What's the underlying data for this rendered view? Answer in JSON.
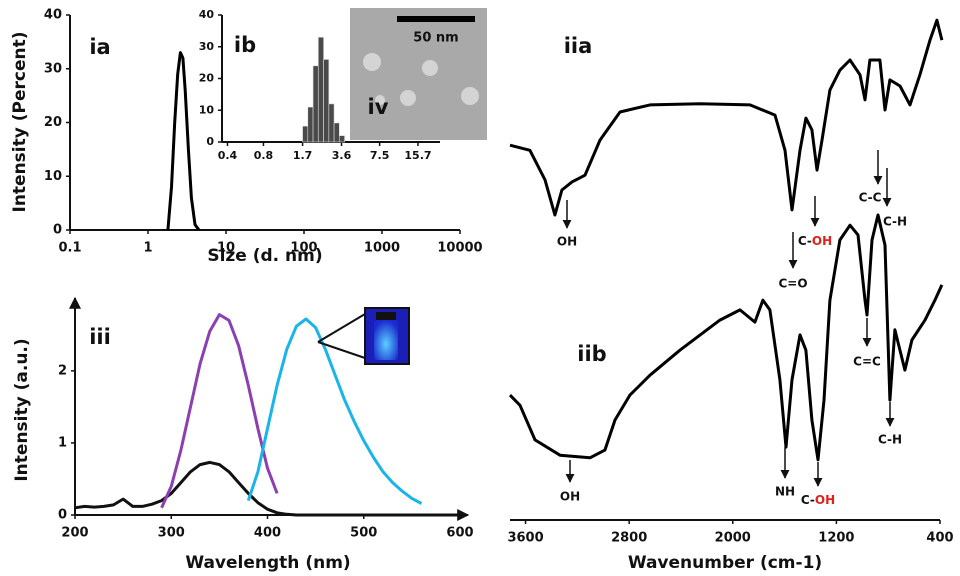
{
  "chart_data": [
    {
      "type": "line",
      "panel_label": "ia",
      "xlabel": "Size (d. nm)",
      "ylabel": "Intensity (Percent)",
      "xscale": "log",
      "xlim": [
        0.1,
        10000
      ],
      "xticks": [
        0.1,
        1,
        10,
        100,
        1000,
        10000
      ],
      "ylim": [
        0,
        40
      ],
      "yticks": [
        0,
        10,
        20,
        30,
        40
      ],
      "color": "#000000",
      "x": [
        1.8,
        2.0,
        2.2,
        2.4,
        2.6,
        2.8,
        3.0,
        3.3,
        3.6,
        4.0,
        4.5
      ],
      "values": [
        0,
        8,
        20,
        29,
        33,
        32,
        26,
        15,
        6,
        1,
        0
      ]
    },
    {
      "type": "histogram",
      "panel_label": "ib",
      "xscale": "log",
      "xlim": [
        0.36,
        24
      ],
      "xticks": [
        0.4,
        0.8,
        1.7,
        3.6,
        7.5,
        15.7
      ],
      "ylim": [
        0,
        40
      ],
      "yticks": [
        0,
        10,
        20,
        30,
        40
      ],
      "color": "#4a4a4a",
      "bins": [
        1.7,
        1.88,
        2.08,
        2.3,
        2.55,
        2.82,
        3.12,
        3.45,
        3.82
      ],
      "values": [
        5,
        11,
        24,
        33,
        26,
        12,
        6,
        2
      ]
    },
    {
      "type": "image",
      "panel_label": "iv",
      "scale_bar": "50 nm"
    },
    {
      "type": "line",
      "panel_label": "iii",
      "xlabel": "Wavelength (nm)",
      "ylabel": "Intensity (a.u.)",
      "xlim": [
        200,
        600
      ],
      "xticks": [
        200,
        300,
        400,
        500,
        600
      ],
      "ylim": [
        0,
        2.9
      ],
      "yticks": [
        0,
        1,
        2
      ],
      "x": [
        200,
        210,
        220,
        230,
        240,
        250,
        260,
        270,
        280,
        290,
        300,
        310,
        320,
        330,
        340,
        350,
        360,
        370,
        380,
        390,
        400,
        410,
        420,
        430,
        440,
        450,
        460,
        470,
        480,
        490,
        500,
        510,
        520,
        530,
        540,
        550,
        560,
        570,
        580,
        590,
        600
      ],
      "series": [
        {
          "color": "#111111",
          "values": [
            0.1,
            0.12,
            0.11,
            0.12,
            0.14,
            0.22,
            0.12,
            0.12,
            0.15,
            0.2,
            0.3,
            0.45,
            0.6,
            0.7,
            0.73,
            0.7,
            0.6,
            0.45,
            0.3,
            0.17,
            0.08,
            0.03,
            0.01,
            0,
            0,
            0,
            0,
            0,
            0,
            0,
            0,
            0,
            0,
            0,
            0,
            0,
            0,
            0,
            0,
            0,
            0
          ]
        },
        {
          "color": "#8b3fb0",
          "values": [
            null,
            null,
            null,
            null,
            null,
            null,
            null,
            null,
            null,
            0.1,
            0.4,
            0.9,
            1.5,
            2.1,
            2.55,
            2.78,
            2.7,
            2.35,
            1.8,
            1.2,
            0.65,
            0.3,
            null,
            null,
            null,
            null,
            null,
            null,
            null,
            null,
            null,
            null,
            null,
            null,
            null,
            null,
            null,
            null,
            null,
            null,
            null
          ]
        },
        {
          "color": "#19b5ea",
          "values": [
            null,
            null,
            null,
            null,
            null,
            null,
            null,
            null,
            null,
            null,
            null,
            null,
            null,
            null,
            null,
            null,
            null,
            null,
            0.2,
            0.6,
            1.2,
            1.8,
            2.3,
            2.62,
            2.72,
            2.6,
            2.3,
            1.95,
            1.6,
            1.3,
            1.03,
            0.8,
            0.6,
            0.45,
            0.33,
            0.23,
            0.16,
            null,
            null,
            null,
            null
          ]
        }
      ]
    },
    {
      "type": "line",
      "xlabel": "Wavenumber (cm-1)",
      "xlim": [
        3720,
        400
      ],
      "xticks": [
        3600,
        2800,
        2000,
        1200,
        400
      ],
      "ylim": [
        0,
        100
      ],
      "series": [
        {
          "name": "iia",
          "color": "#000000",
          "x": [
            3720,
            3566,
            3450,
            3373,
            3319,
            3241,
            3141,
            3025,
            2871,
            2639,
            2253,
            1867,
            1674,
            1597,
            1543,
            1481,
            1435,
            1389,
            1350,
            1311,
            1250,
            1173,
            1095,
            1018,
            979,
            941,
            864,
            825,
            787,
            709,
            632,
            555,
            477,
            424,
            385
          ],
          "values": [
            73.5,
            72.5,
            66.7,
            59.8,
            64.7,
            66.3,
            67.6,
            74.5,
            80,
            81.4,
            81.6,
            81.4,
            79.4,
            72.5,
            60.8,
            72.5,
            78.8,
            76.5,
            68.6,
            74.5,
            84.3,
            88.2,
            90.2,
            87.3,
            82.4,
            90.2,
            90.2,
            80.4,
            86.3,
            85.1,
            81.4,
            87.3,
            94.1,
            98,
            94.1
          ],
          "annotations": [
            {
              "text": "OH",
              "color": "#e0201b"
            },
            {
              "text": "C=O",
              "color": "#111111"
            },
            {
              "text": [
                "C-",
                "OH"
              ],
              "color": [
                "#111111",
                "#e0201b"
              ]
            },
            {
              "text": "C-C",
              "color": "#111111"
            },
            {
              "text": "C-H",
              "color": "#111111"
            }
          ]
        },
        {
          "name": "iib",
          "color": "#000000",
          "x": [
            3720,
            3643,
            3527,
            3334,
            3102,
            2987,
            2909,
            2794,
            2639,
            2408,
            2099,
            1944,
            1829,
            1767,
            1713,
            1636,
            1589,
            1543,
            1481,
            1435,
            1389,
            1342,
            1296,
            1250,
            1173,
            1095,
            1033,
            979,
            964,
            925,
            879,
            825,
            787,
            748,
            671,
            617,
            516,
            439,
            385
          ],
          "values": [
            24.5,
            22.5,
            15.7,
            12.7,
            12.2,
            13.7,
            19.6,
            24.5,
            28.4,
            33.3,
            39.2,
            41.2,
            38.8,
            43.1,
            41.2,
            27.5,
            14.3,
            27.5,
            36.3,
            33.3,
            19.6,
            11.8,
            23.5,
            43.1,
            54.9,
            57.8,
            55.9,
            43.1,
            40.2,
            54.9,
            59.8,
            53.9,
            23.5,
            37.3,
            29.4,
            35.3,
            39.2,
            43.1,
            46.1
          ],
          "annotations": [
            {
              "text": "OH",
              "color": "#e0201b"
            },
            {
              "text": "NH",
              "color": "#1f5fb0"
            },
            {
              "text": [
                "C-",
                "OH"
              ],
              "color": [
                "#111111",
                "#e0201b"
              ]
            },
            {
              "text": "C=C",
              "color": "#111111"
            },
            {
              "text": "C-H",
              "color": "#111111"
            }
          ]
        }
      ]
    }
  ]
}
